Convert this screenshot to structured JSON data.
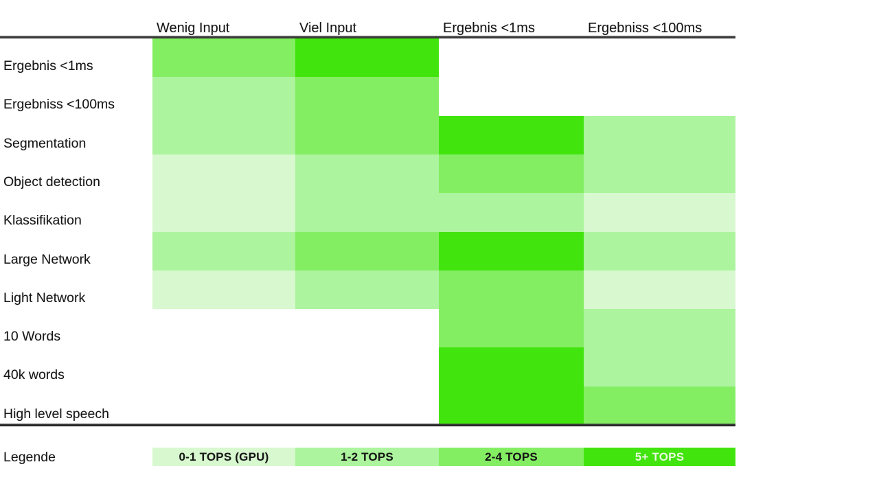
{
  "chart_data": {
    "type": "heatmap",
    "title": "",
    "columns": [
      "Wenig Input",
      "Viel Input",
      "Ergebnis <1ms",
      "Ergebniss <100ms"
    ],
    "rows": [
      "Ergebnis <1ms",
      "Ergebniss <100ms",
      "Segmentation",
      "Object detection",
      "Klassifikation",
      "Large Network",
      "Light Network",
      "10 Words",
      "40k words",
      "High level speech"
    ],
    "cells": [
      [
        "2-4",
        "5+",
        null,
        null
      ],
      [
        "1-2",
        "2-4",
        null,
        null
      ],
      [
        "1-2",
        "2-4",
        "5+",
        "1-2"
      ],
      [
        "0-1",
        "1-2",
        "2-4",
        "1-2"
      ],
      [
        "0-1",
        "1-2",
        "1-2",
        "0-1"
      ],
      [
        "1-2",
        "2-4",
        "5+",
        "1-2"
      ],
      [
        "0-1",
        "1-2",
        "2-4",
        "0-1"
      ],
      [
        null,
        null,
        "2-4",
        "1-2"
      ],
      [
        null,
        null,
        "5+",
        "1-2"
      ],
      [
        null,
        null,
        "5+",
        "2-4"
      ]
    ],
    "levels": [
      {
        "key": "0-1",
        "label": "0-1 TOPS (GPU)",
        "color": "#d8f8d0",
        "text_color": "#161616"
      },
      {
        "key": "1-2",
        "label": "1-2 TOPS",
        "color": "#acf49d",
        "text_color": "#161616"
      },
      {
        "key": "2-4",
        "label": "2-4 TOPS",
        "color": "#84ee63",
        "text_color": "#161616"
      },
      {
        "key": "5+",
        "label": "5+ TOPS",
        "color": "#42e40e",
        "text_color": "#e9fbdf"
      }
    ],
    "legend_title": "Legende",
    "layout": {
      "legend_position": "bottom",
      "grid": "off",
      "column_headers_position": "top",
      "row_labels_position": "left",
      "background": "#ffffff"
    }
  }
}
